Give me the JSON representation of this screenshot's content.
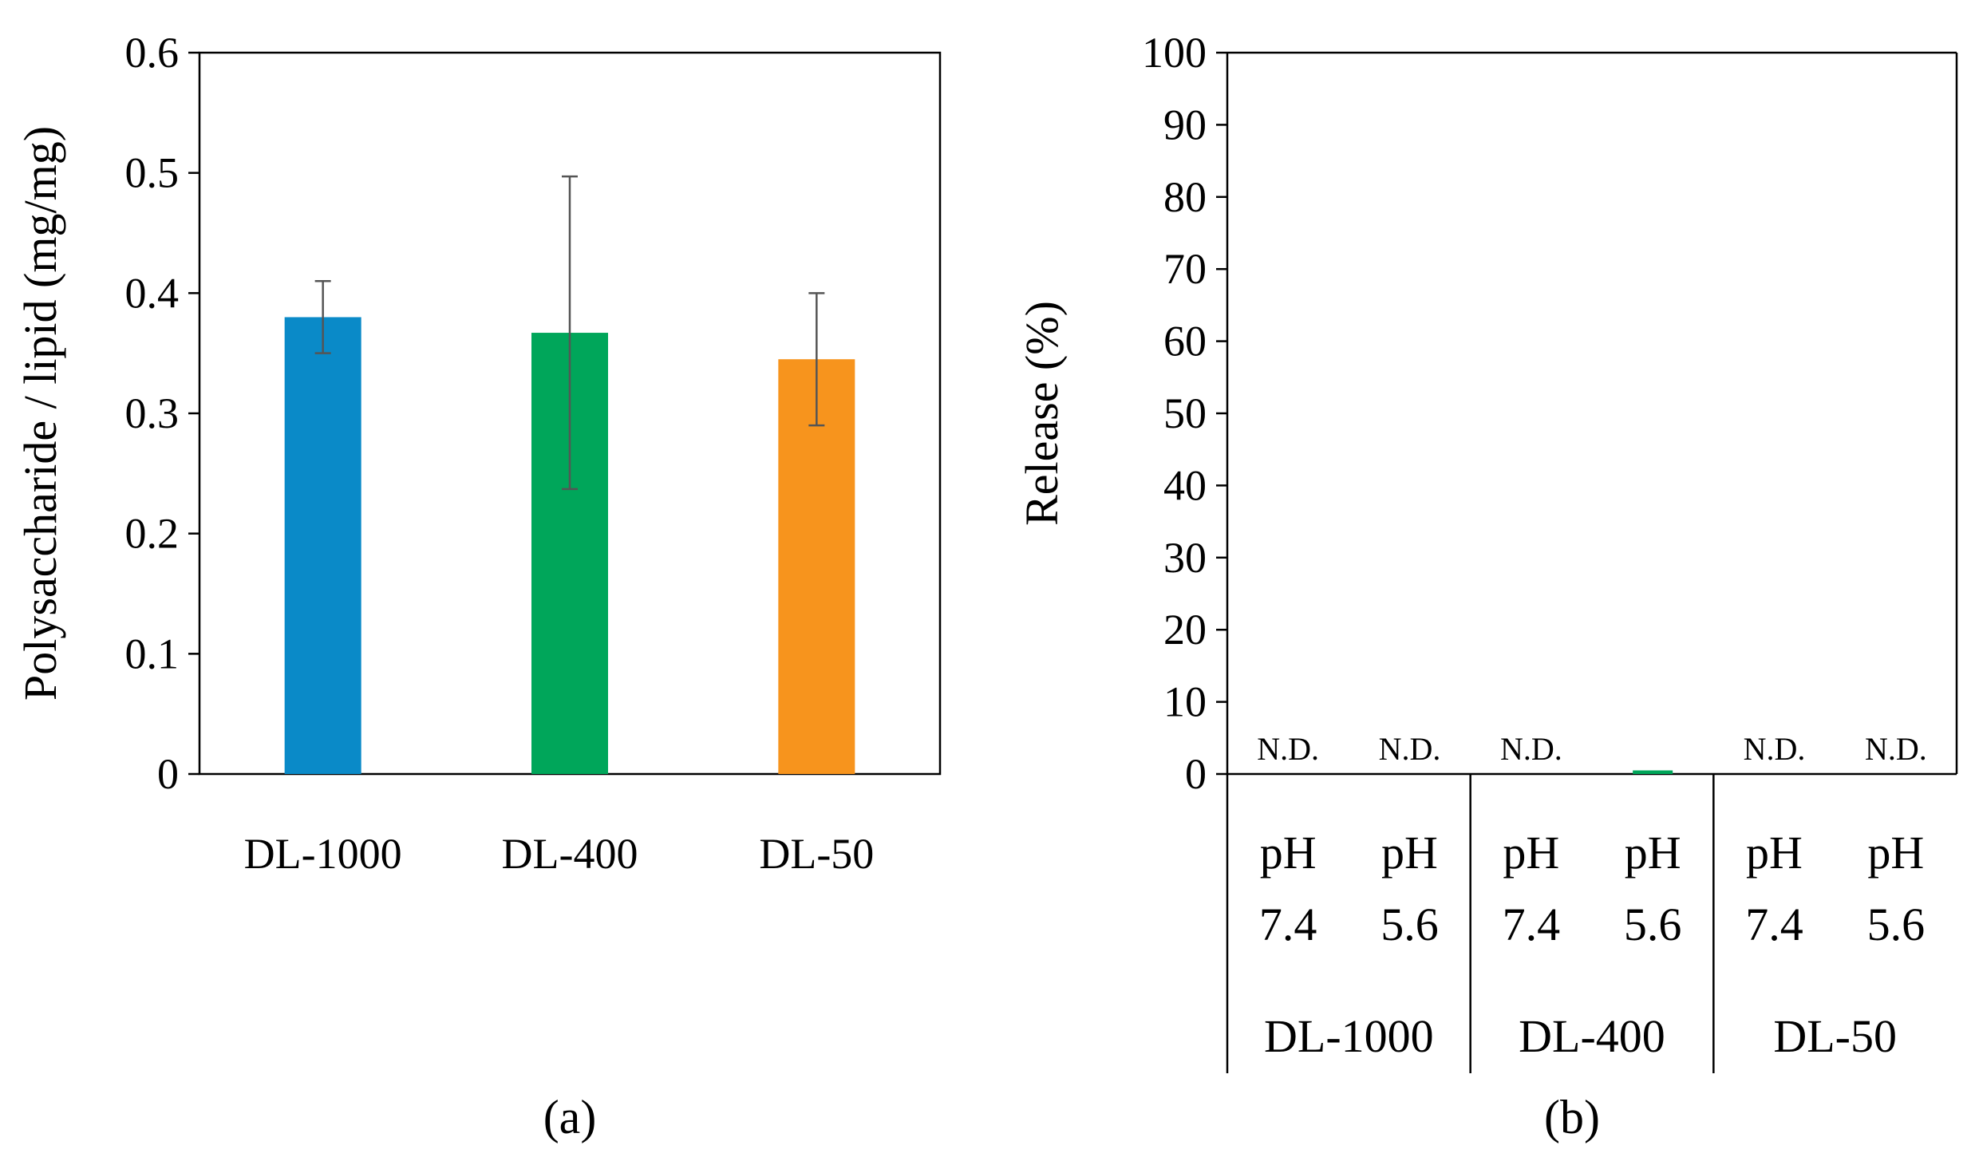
{
  "chart_data": [
    {
      "panel": "(a)",
      "type": "bar",
      "title": "",
      "xlabel": "",
      "ylabel": "Polysaccharide / lipid (mg/mg)",
      "ylim": [
        0,
        0.6
      ],
      "yticks": [
        0,
        0.1,
        0.2,
        0.3,
        0.4,
        0.5,
        0.6
      ],
      "ytick_labels": [
        "0",
        "0.1",
        "0.2",
        "0.3",
        "0.4",
        "0.5",
        "0.6"
      ],
      "grid": false,
      "categories": [
        "DL-1000",
        "DL-400",
        "DL-50"
      ],
      "values": [
        0.38,
        0.367,
        0.345
      ],
      "errors": [
        0.03,
        0.13,
        0.055
      ],
      "colors": [
        "#0a8ac8",
        "#00a65a",
        "#f7941d"
      ]
    },
    {
      "panel": "(b)",
      "type": "bar",
      "title": "",
      "xlabel": "",
      "ylabel": "Release (%)",
      "ylim": [
        0,
        100
      ],
      "yticks": [
        0,
        10,
        20,
        30,
        40,
        50,
        60,
        70,
        80,
        90,
        100
      ],
      "ytick_labels": [
        "0",
        "10",
        "20",
        "30",
        "40",
        "50",
        "60",
        "70",
        "80",
        "90",
        "100"
      ],
      "grid": false,
      "groups": [
        "DL-1000",
        "DL-400",
        "DL-50"
      ],
      "categories": [
        {
          "group": "DL-1000",
          "line1": "pH",
          "line2": "7.4",
          "value": 0,
          "annotation": "N.D."
        },
        {
          "group": "DL-1000",
          "line1": "pH",
          "line2": "5.6",
          "value": 0,
          "annotation": "N.D."
        },
        {
          "group": "DL-400",
          "line1": "pH",
          "line2": "7.4",
          "value": 0,
          "annotation": "N.D."
        },
        {
          "group": "DL-400",
          "line1": "pH",
          "line2": "5.6",
          "value": 0.5,
          "annotation": ""
        },
        {
          "group": "DL-50",
          "line1": "pH",
          "line2": "7.4",
          "value": 0,
          "annotation": "N.D."
        },
        {
          "group": "DL-50",
          "line1": "pH",
          "line2": "5.6",
          "value": 0,
          "annotation": "N.D."
        }
      ],
      "bar_color": "#00a65a"
    }
  ]
}
